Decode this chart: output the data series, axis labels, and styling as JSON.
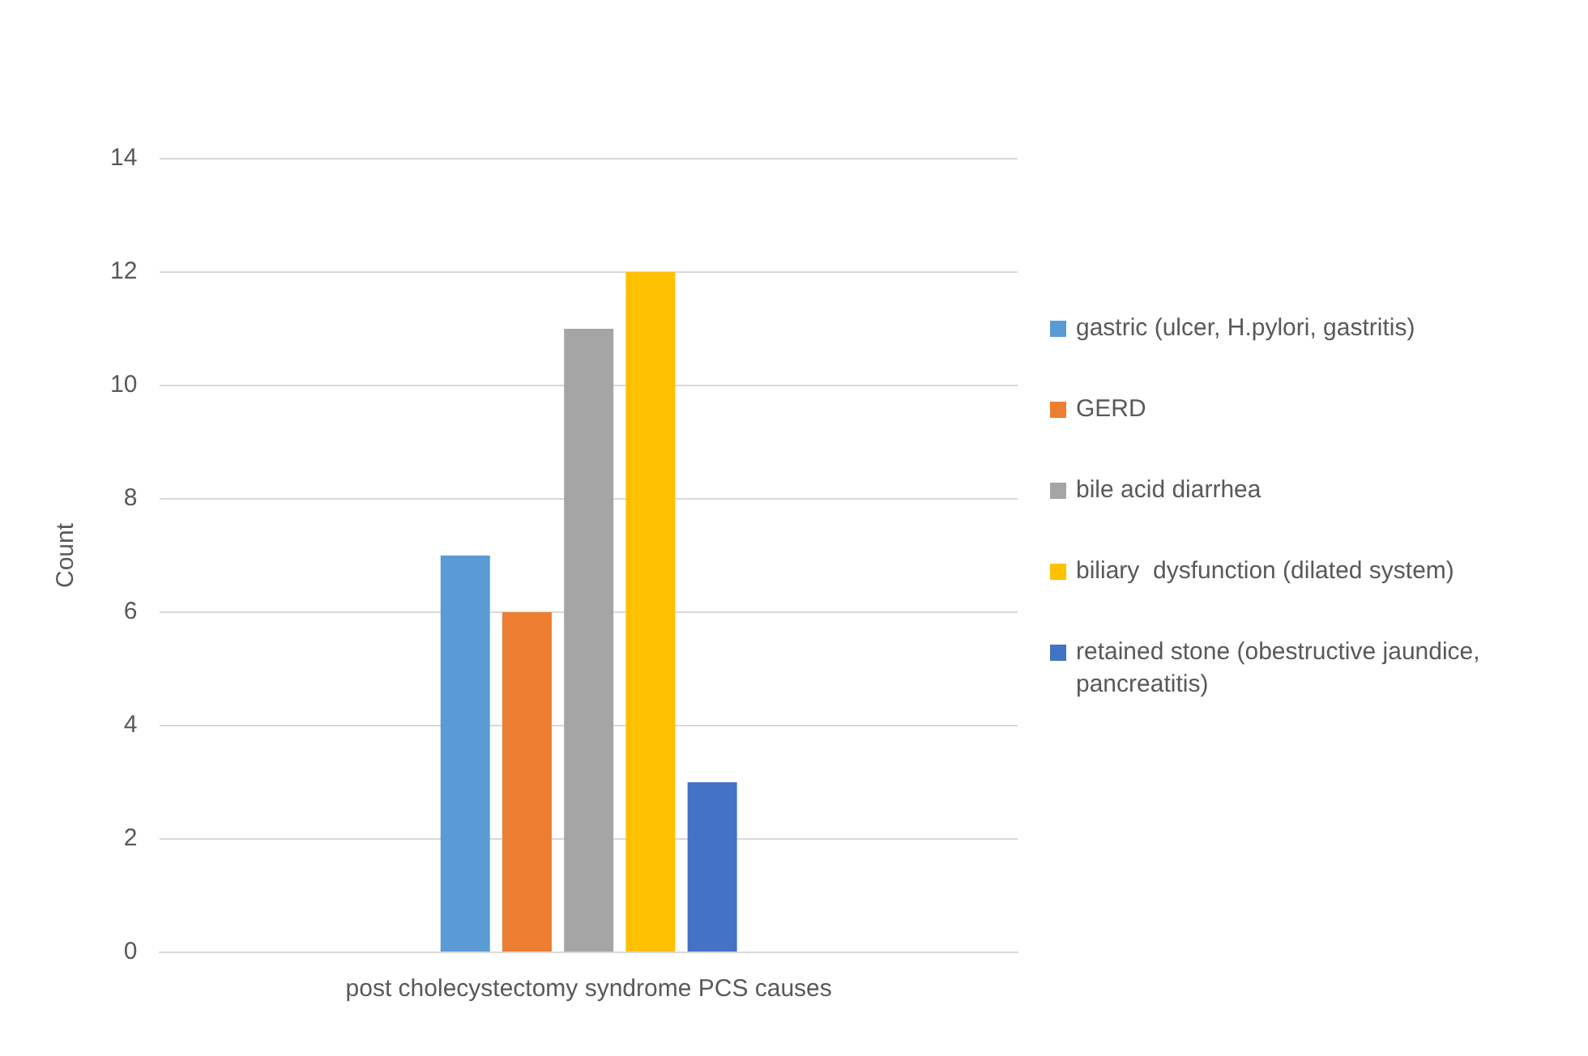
{
  "chart_data": {
    "type": "bar",
    "ylabel": "Count",
    "categories": [
      "post cholecystectomy syndrome PCS causes"
    ],
    "series": [
      {
        "name": "gastric (ulcer, H.pylori, gastritis)",
        "color": "#5b9bd5",
        "values": [
          7
        ]
      },
      {
        "name": "GERD",
        "color": "#ed7d31",
        "values": [
          6
        ]
      },
      {
        "name": "bile acid diarrhea",
        "color": "#a5a5a5",
        "values": [
          11
        ]
      },
      {
        "name": "biliary  dysfunction (dilated system)",
        "color": "#ffc000",
        "values": [
          12
        ]
      },
      {
        "name": "retained stone (obestructive jaundice, pancreatitis)",
        "color": "#4472c4",
        "values": [
          3
        ]
      }
    ],
    "ylim": [
      0,
      14
    ],
    "yticks": [
      0,
      2,
      4,
      6,
      8,
      10,
      12,
      14
    ],
    "grid": "y",
    "legend": "right"
  }
}
